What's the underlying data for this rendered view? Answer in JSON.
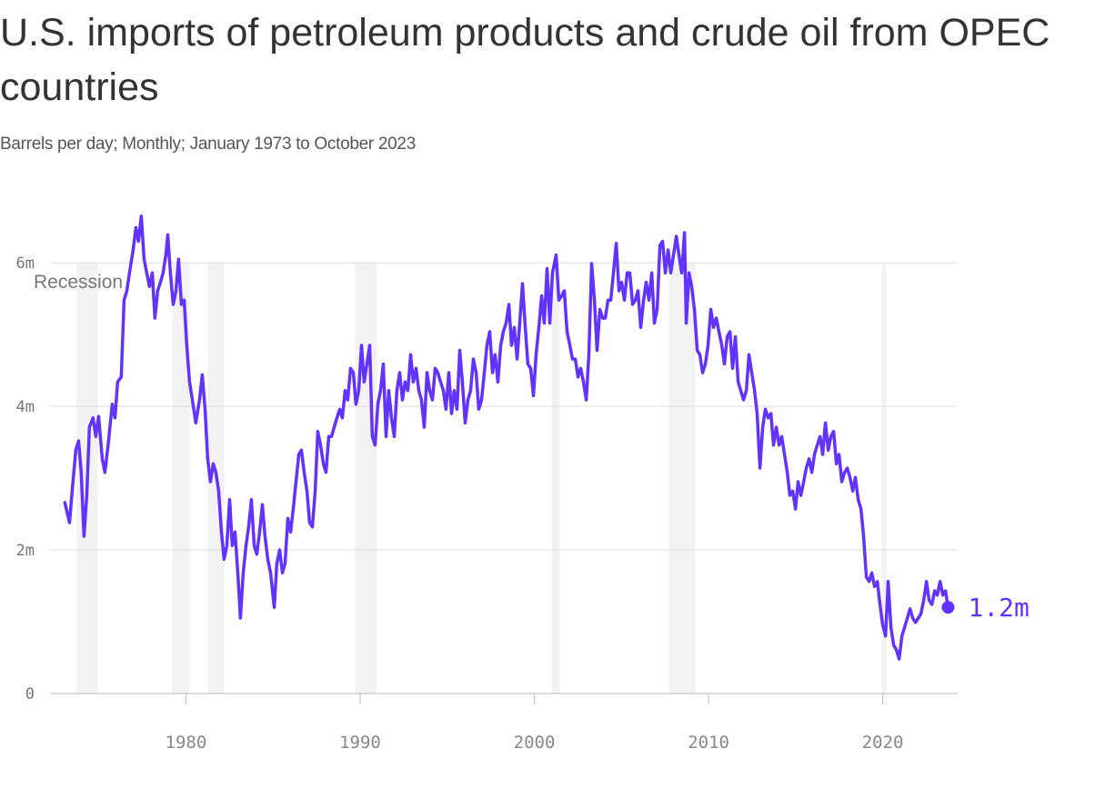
{
  "chart_data": {
    "type": "line",
    "title": "U.S. imports of petroleum products and crude oil from OPEC countries",
    "subtitle": "Barrels per day; Monthly; January 1973 to October 2023",
    "recession_label": "Recession",
    "recessions": [
      [
        1973.73,
        1974.93
      ],
      [
        1979.22,
        1980.21
      ],
      [
        1981.25,
        1982.19
      ],
      [
        1989.71,
        1990.97
      ],
      [
        2000.99,
        2001.46
      ],
      [
        2007.73,
        2009.24
      ],
      [
        2019.95,
        2020.21
      ]
    ],
    "color": "#6233ff",
    "xlim": [
      1972.2,
      2024.3
    ],
    "xticks": [
      1980,
      1990,
      2000,
      2010,
      2020
    ],
    "ylim": [
      0,
      6.8
    ],
    "yticks": [
      0,
      {
        "value": 2,
        "label": "2m"
      },
      {
        "value": 4,
        "label": "4m"
      },
      {
        "value": 6,
        "label": "6m"
      }
    ],
    "grid": true,
    "x": [
      1973.05,
      1973.32,
      1973.47,
      1973.68,
      1973.84,
      1973.99,
      1974.15,
      1974.31,
      1974.46,
      1974.67,
      1974.83,
      1974.99,
      1975.2,
      1975.35,
      1975.56,
      1975.77,
      1975.93,
      1976.08,
      1976.29,
      1976.45,
      1976.61,
      1976.76,
      1976.97,
      1977.13,
      1977.28,
      1977.44,
      1977.6,
      1977.75,
      1977.91,
      1978.07,
      1978.22,
      1978.38,
      1978.54,
      1978.69,
      1978.85,
      1978.96,
      1979.11,
      1979.27,
      1979.43,
      1979.58,
      1979.74,
      1979.9,
      1980.05,
      1980.21,
      1980.37,
      1980.57,
      1980.78,
      1980.94,
      1981.1,
      1981.25,
      1981.41,
      1981.57,
      1981.72,
      1981.88,
      1982.04,
      1982.19,
      1982.35,
      1982.51,
      1982.66,
      1982.82,
      1982.98,
      1983.13,
      1983.29,
      1983.45,
      1983.6,
      1983.76,
      1983.92,
      1984.07,
      1984.23,
      1984.39,
      1984.54,
      1984.7,
      1984.86,
      1985.07,
      1985.22,
      1985.38,
      1985.54,
      1985.69,
      1985.85,
      1986.01,
      1986.16,
      1986.32,
      1986.48,
      1986.63,
      1986.79,
      1986.95,
      1987.1,
      1987.26,
      1987.42,
      1987.57,
      1987.73,
      1987.89,
      1988.04,
      1988.2,
      1988.36,
      1988.51,
      1988.67,
      1988.83,
      1988.98,
      1989.14,
      1989.29,
      1989.45,
      1989.61,
      1989.76,
      1989.92,
      1990.08,
      1990.23,
      1990.39,
      1990.55,
      1990.7,
      1990.86,
      1991.02,
      1991.17,
      1991.33,
      1991.49,
      1991.64,
      1991.8,
      1991.96,
      1992.11,
      1992.27,
      1992.43,
      1992.58,
      1992.74,
      1992.9,
      1993.05,
      1993.21,
      1993.37,
      1993.52,
      1993.68,
      1993.84,
      1993.99,
      1994.15,
      1994.31,
      1994.46,
      1994.62,
      1994.78,
      1994.93,
      1995.09,
      1995.25,
      1995.4,
      1995.56,
      1995.72,
      1995.87,
      1996.03,
      1996.19,
      1996.34,
      1996.5,
      1996.66,
      1996.81,
      1996.97,
      1997.13,
      1997.28,
      1997.44,
      1997.6,
      1997.75,
      1997.91,
      1998.07,
      1998.22,
      1998.38,
      1998.54,
      1998.69,
      1998.85,
      1999.01,
      1999.16,
      1999.32,
      1999.48,
      1999.63,
      1999.79,
      1999.95,
      2000.1,
      2000.26,
      2000.42,
      2000.57,
      2000.73,
      2000.89,
      2001.04,
      2001.25,
      2001.41,
      2001.57,
      2001.72,
      2001.88,
      2002.04,
      2002.19,
      2002.35,
      2002.51,
      2002.66,
      2002.82,
      2002.98,
      2003.13,
      2003.29,
      2003.45,
      2003.6,
      2003.76,
      2003.92,
      2004.07,
      2004.23,
      2004.39,
      2004.54,
      2004.7,
      2004.86,
      2005.01,
      2005.17,
      2005.33,
      2005.48,
      2005.64,
      2005.8,
      2005.95,
      2006.11,
      2006.27,
      2006.42,
      2006.58,
      2006.74,
      2006.89,
      2007.05,
      2007.21,
      2007.36,
      2007.52,
      2007.68,
      2007.83,
      2007.99,
      2008.15,
      2008.3,
      2008.46,
      2008.62,
      2008.72,
      2008.88,
      2009.03,
      2009.19,
      2009.35,
      2009.5,
      2009.66,
      2009.82,
      2009.97,
      2010.13,
      2010.29,
      2010.44,
      2010.6,
      2010.76,
      2010.91,
      2011.07,
      2011.23,
      2011.38,
      2011.54,
      2011.7,
      2011.85,
      2012.01,
      2012.17,
      2012.32,
      2012.48,
      2012.64,
      2012.79,
      2012.95,
      2013.11,
      2013.26,
      2013.42,
      2013.58,
      2013.73,
      2013.89,
      2014.05,
      2014.2,
      2014.36,
      2014.52,
      2014.67,
      2014.83,
      2014.99,
      2015.14,
      2015.3,
      2015.46,
      2015.61,
      2015.77,
      2015.93,
      2016.08,
      2016.24,
      2016.4,
      2016.55,
      2016.71,
      2016.87,
      2017.02,
      2017.18,
      2017.34,
      2017.49,
      2017.65,
      2017.81,
      2017.96,
      2018.12,
      2018.28,
      2018.43,
      2018.59,
      2018.75,
      2018.9,
      2019.06,
      2019.22,
      2019.37,
      2019.53,
      2019.69,
      2019.84,
      2020.0,
      2020.16,
      2020.31,
      2020.47,
      2020.63,
      2020.78,
      2020.94,
      2021.1,
      2021.25,
      2021.41,
      2021.57,
      2021.72,
      2021.88,
      2022.04,
      2022.19,
      2022.35,
      2022.51,
      2022.66,
      2022.82,
      2022.98,
      2023.13,
      2023.29,
      2023.45,
      2023.6,
      2023.75
    ],
    "values": [
      2.66,
      2.38,
      2.82,
      3.39,
      3.52,
      3.08,
      2.19,
      2.76,
      3.71,
      3.84,
      3.58,
      3.86,
      3.27,
      3.08,
      3.52,
      4.03,
      3.84,
      4.34,
      4.41,
      5.48,
      5.61,
      5.86,
      6.18,
      6.49,
      6.3,
      6.65,
      6.05,
      5.86,
      5.67,
      5.86,
      5.23,
      5.61,
      5.73,
      5.86,
      6.11,
      6.39,
      5.86,
      5.42,
      5.61,
      6.05,
      5.42,
      5.48,
      4.85,
      4.34,
      4.09,
      3.77,
      4.09,
      4.44,
      3.96,
      3.27,
      2.95,
      3.2,
      3.08,
      2.82,
      2.25,
      1.87,
      2.06,
      2.7,
      2.06,
      2.25,
      1.68,
      1.05,
      1.68,
      2.06,
      2.32,
      2.7,
      2.06,
      1.94,
      2.25,
      2.63,
      2.19,
      1.87,
      1.68,
      1.2,
      1.81,
      2.0,
      1.68,
      1.81,
      2.44,
      2.25,
      2.57,
      2.95,
      3.33,
      3.39,
      3.08,
      2.82,
      2.38,
      2.32,
      2.82,
      3.65,
      3.46,
      3.2,
      3.08,
      3.58,
      3.58,
      3.71,
      3.84,
      3.96,
      3.84,
      4.22,
      4.09,
      4.53,
      4.47,
      4.03,
      4.22,
      4.85,
      4.34,
      4.59,
      4.85,
      3.58,
      3.46,
      4.03,
      4.22,
      4.59,
      3.58,
      4.22,
      3.84,
      3.58,
      4.22,
      4.47,
      4.09,
      4.34,
      4.22,
      4.72,
      4.34,
      4.53,
      4.22,
      4.09,
      3.71,
      4.47,
      4.22,
      4.09,
      4.53,
      4.47,
      4.34,
      4.22,
      3.96,
      4.47,
      3.9,
      4.22,
      3.96,
      4.78,
      4.34,
      3.77,
      4.09,
      4.22,
      4.66,
      4.47,
      3.96,
      4.09,
      4.47,
      4.85,
      5.04,
      4.47,
      4.72,
      4.34,
      4.85,
      5.04,
      5.16,
      5.42,
      4.85,
      5.1,
      4.66,
      5.16,
      5.71,
      5.1,
      4.59,
      4.53,
      4.15,
      4.72,
      5.1,
      5.54,
      5.16,
      5.92,
      5.16,
      5.86,
      6.11,
      5.48,
      5.54,
      5.61,
      5.04,
      4.85,
      4.66,
      4.66,
      4.41,
      4.53,
      4.34,
      4.09,
      4.72,
      5.99,
      5.48,
      4.78,
      5.35,
      5.23,
      5.23,
      5.48,
      5.48,
      5.86,
      6.27,
      5.61,
      5.73,
      5.48,
      5.86,
      5.86,
      5.42,
      5.48,
      5.61,
      5.1,
      5.48,
      5.73,
      5.48,
      5.86,
      5.16,
      5.35,
      6.24,
      6.3,
      5.86,
      6.18,
      5.86,
      6.11,
      6.37,
      6.11,
      5.86,
      6.42,
      5.16,
      5.86,
      5.67,
      5.35,
      4.78,
      4.72,
      4.47,
      4.59,
      4.85,
      5.35,
      5.1,
      5.23,
      5.04,
      4.85,
      4.59,
      4.97,
      5.04,
      4.53,
      4.97,
      4.34,
      4.22,
      4.09,
      4.22,
      4.72,
      4.47,
      4.22,
      3.9,
      3.14,
      3.71,
      3.96,
      3.84,
      3.9,
      3.46,
      3.71,
      3.46,
      3.58,
      3.33,
      3.08,
      2.76,
      2.82,
      2.57,
      2.95,
      2.76,
      2.95,
      3.14,
      3.27,
      3.08,
      3.33,
      3.46,
      3.58,
      3.33,
      3.77,
      3.39,
      3.58,
      3.65,
      3.2,
      3.33,
      2.95,
      3.08,
      3.14,
      3.01,
      2.82,
      3.01,
      2.7,
      2.57,
      2.19,
      1.62,
      1.56,
      1.68,
      1.49,
      1.56,
      1.24,
      0.95,
      0.8,
      1.56,
      0.92,
      0.67,
      0.61,
      0.48,
      0.8,
      0.92,
      1.05,
      1.18,
      1.05,
      0.99,
      1.05,
      1.11,
      1.3,
      1.56,
      1.3,
      1.24,
      1.43,
      1.37,
      1.56,
      1.37,
      1.43,
      1.2
    ],
    "value_labels": [
      null,
      null,
      null,
      null,
      null,
      null,
      null,
      null,
      null,
      null,
      null,
      null,
      null,
      null,
      null,
      null,
      null,
      null,
      null,
      null,
      null,
      null,
      null,
      null,
      null,
      null,
      null,
      null,
      null,
      null,
      null,
      null,
      null,
      null,
      null,
      null,
      null,
      null,
      null,
      null,
      null,
      null,
      null,
      null,
      null,
      null,
      null,
      null,
      null,
      null,
      null,
      null,
      null,
      null,
      null,
      null,
      null,
      null,
      null,
      null,
      null,
      null,
      null,
      null,
      null,
      null,
      null,
      null,
      null,
      null,
      null,
      null,
      null,
      null,
      null,
      null,
      null,
      null,
      null,
      null,
      null,
      null,
      null,
      null,
      null,
      null,
      null,
      null,
      null,
      null,
      null,
      null,
      null,
      null,
      null,
      null,
      null,
      null,
      null,
      null,
      null,
      null,
      null,
      null,
      null,
      null,
      null,
      null,
      null,
      null,
      null,
      null,
      null,
      null,
      null,
      null,
      null,
      null,
      null,
      null,
      null,
      null,
      null,
      null,
      null,
      null,
      null,
      null,
      null,
      null,
      null,
      null,
      null,
      null,
      null,
      null,
      null,
      null,
      null,
      null,
      null,
      null,
      null,
      null,
      null,
      null,
      null,
      null,
      null,
      null,
      null,
      null,
      null,
      null,
      null,
      null,
      null,
      null,
      null,
      null,
      null,
      null,
      null,
      null,
      null,
      null,
      null,
      null,
      null,
      null,
      null,
      null,
      null,
      null,
      null,
      null,
      null,
      null,
      null,
      null,
      null,
      null,
      null,
      null,
      null,
      null,
      null,
      null,
      null,
      null,
      null,
      null,
      null,
      null,
      null,
      null,
      null,
      null,
      null,
      null,
      null,
      null,
      null,
      null,
      null,
      null,
      null,
      null,
      null,
      null,
      null,
      null,
      null,
      null,
      null,
      null,
      null,
      null,
      null,
      null,
      null,
      null,
      null,
      null,
      null,
      null,
      null,
      null,
      null,
      null,
      null,
      null,
      null,
      null,
      null,
      null,
      null,
      null,
      null,
      null,
      null,
      null,
      null,
      null,
      null,
      null,
      null,
      null,
      null,
      null,
      null,
      null,
      null,
      null,
      null,
      null,
      null,
      null,
      null,
      null,
      null,
      null,
      null,
      null,
      null,
      null,
      null,
      null,
      null,
      null,
      null,
      null,
      null,
      null,
      null,
      null,
      null,
      null,
      null,
      null,
      null,
      null,
      null,
      null,
      null,
      null,
      null,
      null,
      null,
      null,
      null,
      null,
      null,
      null,
      null,
      null,
      null,
      null,
      null,
      null,
      null,
      null,
      null,
      null,
      null,
      null,
      null,
      null,
      null,
      null,
      null,
      null,
      null,
      null,
      null,
      null,
      null,
      null,
      null,
      null,
      "1.2m"
    ]
  }
}
